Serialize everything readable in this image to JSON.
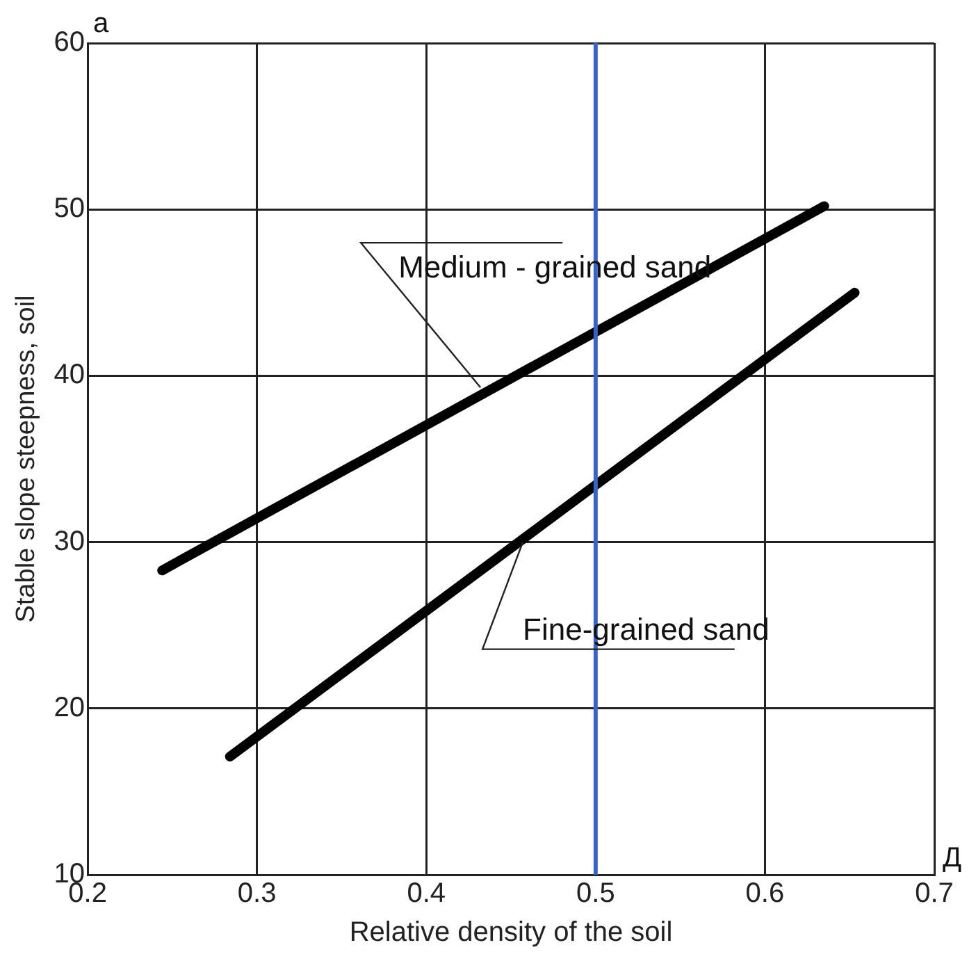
{
  "chart_data": {
    "type": "line",
    "xlabel": "Relative density of the soil",
    "ylabel": "Stable slope steepness, soil",
    "series": [
      {
        "color": "#000000",
        "x": [
          0.244,
          0.635
        ],
        "values": [
          28.3,
          50.2
        ]
      },
      {
        "color": "#000000",
        "x": [
          0.284,
          0.653
        ],
        "values": [
          17.1,
          45
        ]
      }
    ],
    "xlim": [
      0.2,
      0.7
    ],
    "xticks": [
      0.2,
      0.3,
      0.4,
      0.5,
      0.6,
      0.7
    ],
    "ylim": [
      10,
      60
    ],
    "yticks": [
      10,
      20,
      30,
      40,
      50,
      60
    ],
    "grid": true,
    "legend": false,
    "marker": "none",
    "line_style": "solid",
    "ref_lines": [
      {
        "axis": "x",
        "value": 0.5,
        "color": "#3a63c8"
      }
    ],
    "annotations": [
      "a",
      "Д",
      {
        "text": "Medium - grained sand",
        "x": 0.432,
        "y": 39.3
      },
      {
        "text": "Fine-grained sand",
        "x": 0.457,
        "y": 30
      }
    ]
  }
}
